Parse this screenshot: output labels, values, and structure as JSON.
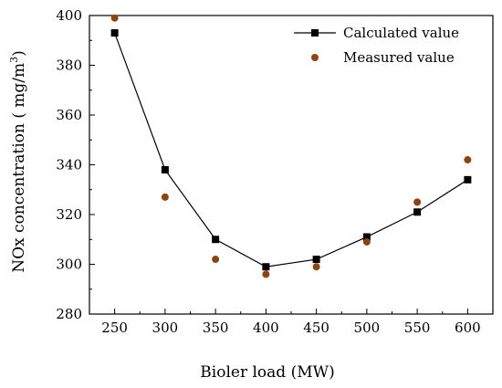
{
  "chart_data": {
    "type": "line",
    "title": "",
    "xlabel": "Bioler load (MW)",
    "ylabel": "NOx concentration ( mg/m",
    "ylabel_superscript": "3",
    "ylabel_suffix": ")",
    "x": [
      250,
      300,
      350,
      400,
      450,
      500,
      550,
      600
    ],
    "xlim": [
      225,
      625
    ],
    "ylim": [
      280,
      400
    ],
    "xticks": [
      250,
      300,
      350,
      400,
      450,
      500,
      550,
      600
    ],
    "yticks": [
      280,
      300,
      320,
      340,
      360,
      380,
      400
    ],
    "legend_position": "top-right",
    "grid": false,
    "series": [
      {
        "name": "Calculated value",
        "marker": "square",
        "line": true,
        "color": "#000000",
        "values": [
          393,
          338,
          310,
          299,
          302,
          311,
          321,
          334
        ]
      },
      {
        "name": "Measured value",
        "marker": "circle",
        "line": false,
        "color": "#8b4513",
        "values": [
          399,
          327,
          302,
          296,
          299,
          309,
          325,
          342
        ]
      }
    ]
  }
}
